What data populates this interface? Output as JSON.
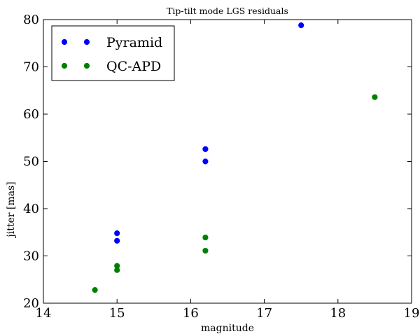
{
  "chart_data": {
    "type": "scatter",
    "title": "Tip-tilt mode LGS residuals",
    "xlabel": "magnitude",
    "ylabel": "jitter [mas]",
    "xlim": [
      14,
      19
    ],
    "ylim": [
      20,
      80
    ],
    "xticks": [
      14,
      15,
      16,
      17,
      18,
      19
    ],
    "yticks": [
      20,
      30,
      40,
      50,
      60,
      70,
      80
    ],
    "grid": false,
    "legend_position": "top-left",
    "series": [
      {
        "name": "Pyramid",
        "color": "#0000ff",
        "points": [
          {
            "x": 15.0,
            "y": 34.8
          },
          {
            "x": 15.0,
            "y": 33.2
          },
          {
            "x": 16.2,
            "y": 52.6
          },
          {
            "x": 16.2,
            "y": 50.0
          },
          {
            "x": 17.5,
            "y": 78.8
          }
        ]
      },
      {
        "name": "QC-APD",
        "color": "#008000",
        "points": [
          {
            "x": 14.7,
            "y": 22.8
          },
          {
            "x": 15.0,
            "y": 27.9
          },
          {
            "x": 15.0,
            "y": 27.0
          },
          {
            "x": 16.2,
            "y": 33.9
          },
          {
            "x": 16.2,
            "y": 31.1
          },
          {
            "x": 18.5,
            "y": 63.6
          }
        ]
      }
    ]
  }
}
